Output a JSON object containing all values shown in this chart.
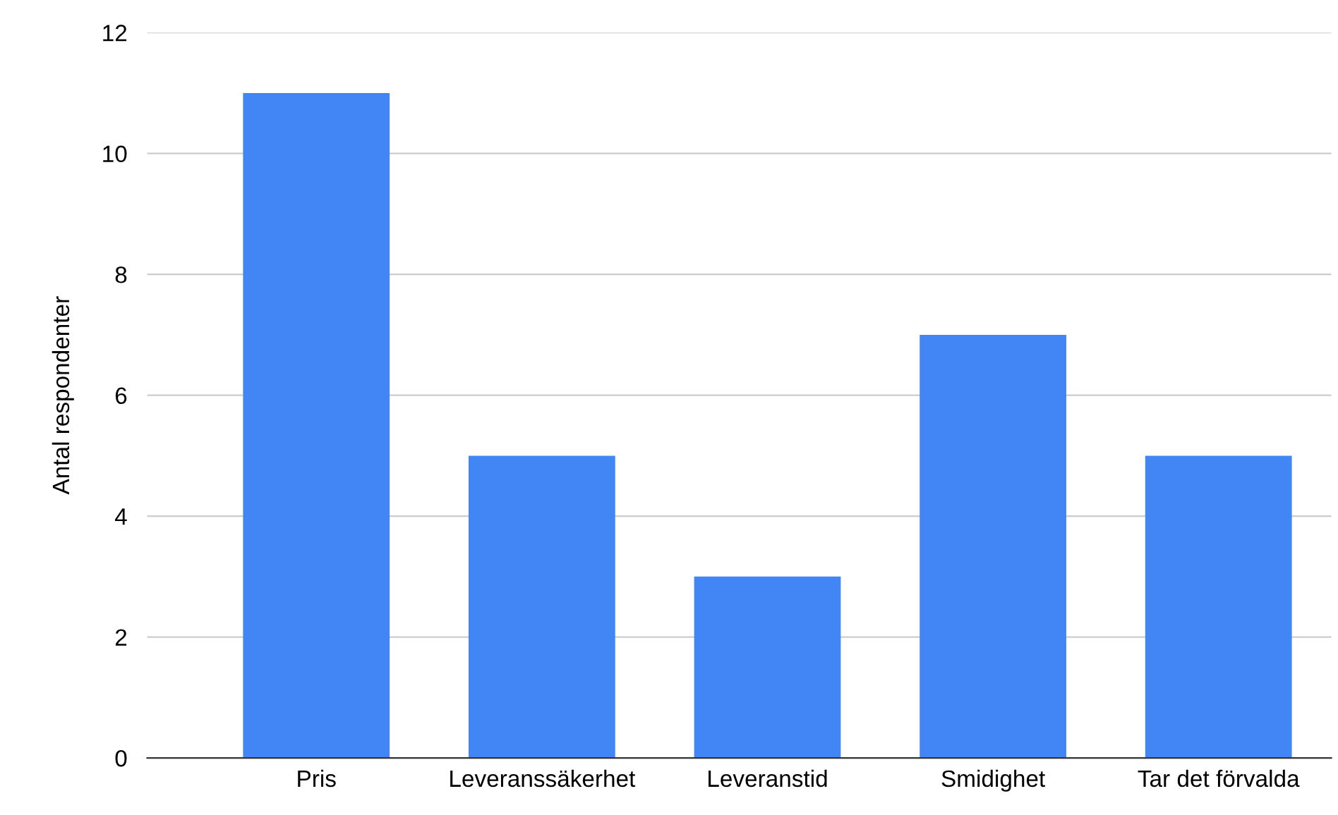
{
  "chart_data": {
    "type": "bar",
    "ylabel": "Antal respondenter",
    "categories": [
      "Pris",
      "Leveranssäkerhet",
      "Leveranstid",
      "Smidighet",
      "Tar det förvalda"
    ],
    "values": [
      11,
      5,
      3,
      7,
      5
    ],
    "color": "#4285f4",
    "ylim": [
      0,
      12
    ],
    "yticks": [
      0,
      2,
      4,
      6,
      8,
      10,
      12
    ],
    "grid": "y"
  }
}
